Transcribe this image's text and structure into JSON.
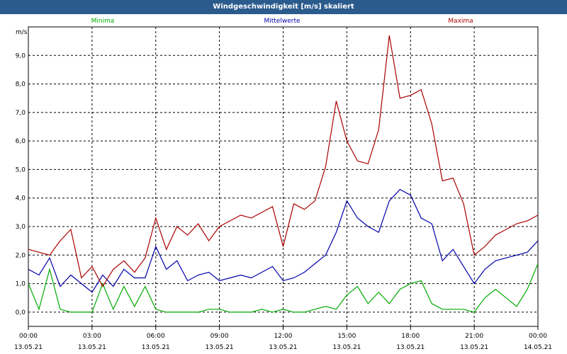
{
  "window_title": "Windgeschwindigkeit [m/s] skaliert",
  "colors": {
    "titlebar": "#2b5b8c",
    "minima": "#00aa00",
    "mittelwerte": "#0000aa",
    "maxima": "#aa0000"
  },
  "chart_data": {
    "type": "line",
    "title": "Windgeschwindigkeit [m/s] skaliert",
    "ylabel": "m/s",
    "ylim": [
      -0.5,
      10.0
    ],
    "xlim": [
      "13.05.21 00:00",
      "14.05.21 00:00"
    ],
    "yticks": [
      "0,0",
      "1,0",
      "2,0",
      "3,0",
      "4,0",
      "5,0",
      "6,0",
      "7,0",
      "8,0",
      "9,0"
    ],
    "xticks": [
      {
        "time": "00:00",
        "date": "13.05.21"
      },
      {
        "time": "03:00",
        "date": "13.05.21"
      },
      {
        "time": "06:00",
        "date": "13.05.21"
      },
      {
        "time": "09:00",
        "date": "13.05.21"
      },
      {
        "time": "12:00",
        "date": "13.05.21"
      },
      {
        "time": "15:00",
        "date": "13.05.21"
      },
      {
        "time": "18:00",
        "date": "13.05.21"
      },
      {
        "time": "21:00",
        "date": "13.05.21"
      },
      {
        "time": "00:00",
        "date": "14.05.21"
      }
    ],
    "grid": true,
    "legend": "top",
    "x": [
      0.0,
      0.5,
      1.0,
      1.5,
      2.0,
      2.5,
      3.0,
      3.5,
      4.0,
      4.5,
      5.0,
      5.5,
      6.0,
      6.5,
      7.0,
      7.5,
      8.0,
      8.5,
      9.0,
      9.5,
      10.0,
      10.5,
      11.0,
      11.5,
      12.0,
      12.5,
      13.0,
      13.5,
      14.0,
      14.5,
      15.0,
      15.5,
      16.0,
      16.5,
      17.0,
      17.5,
      18.0,
      18.5,
      19.0,
      19.5,
      20.0,
      20.5,
      21.0,
      21.5,
      22.0,
      22.5,
      23.0,
      23.5,
      24.0
    ],
    "series": [
      {
        "name": "Minima",
        "color": "#00aa00",
        "values": [
          1.0,
          0.1,
          1.5,
          0.1,
          0.0,
          0.0,
          0.0,
          1.0,
          0.1,
          0.9,
          0.2,
          0.9,
          0.1,
          0.0,
          0.0,
          0.0,
          0.0,
          0.1,
          0.1,
          0.0,
          0.0,
          0.0,
          0.1,
          0.0,
          0.1,
          0.0,
          0.0,
          0.1,
          0.2,
          0.1,
          0.6,
          0.9,
          0.3,
          0.7,
          0.3,
          0.8,
          1.0,
          1.1,
          0.3,
          0.1,
          0.1,
          0.1,
          0.0,
          0.5,
          0.8,
          0.5,
          0.2,
          0.8,
          1.7
        ]
      },
      {
        "name": "Mittelwerte",
        "color": "#0000aa",
        "values": [
          1.5,
          1.3,
          1.9,
          0.9,
          1.3,
          1.0,
          0.7,
          1.3,
          0.9,
          1.5,
          1.2,
          1.2,
          2.3,
          1.5,
          1.8,
          1.1,
          1.3,
          1.4,
          1.1,
          1.2,
          1.3,
          1.2,
          1.4,
          1.6,
          1.1,
          1.2,
          1.4,
          1.7,
          2.0,
          2.8,
          3.9,
          3.3,
          3.0,
          2.8,
          3.9,
          4.3,
          4.1,
          3.3,
          3.1,
          1.8,
          2.2,
          1.6,
          1.0,
          1.5,
          1.8,
          1.9,
          2.0,
          2.1,
          2.5
        ]
      },
      {
        "name": "Maxima",
        "color": "#aa0000",
        "values": [
          2.2,
          2.1,
          2.0,
          2.5,
          2.9,
          1.2,
          1.6,
          0.9,
          1.5,
          1.8,
          1.4,
          1.9,
          3.3,
          2.2,
          3.0,
          2.7,
          3.1,
          2.5,
          3.0,
          3.2,
          3.4,
          3.3,
          3.5,
          3.7,
          2.3,
          3.8,
          3.6,
          3.9,
          5.1,
          7.4,
          6.0,
          5.3,
          5.2,
          6.4,
          9.7,
          7.5,
          7.6,
          7.8,
          6.6,
          4.6,
          4.7,
          3.8,
          2.0,
          2.3,
          2.7,
          2.9,
          3.1,
          3.2,
          3.4
        ]
      }
    ]
  }
}
